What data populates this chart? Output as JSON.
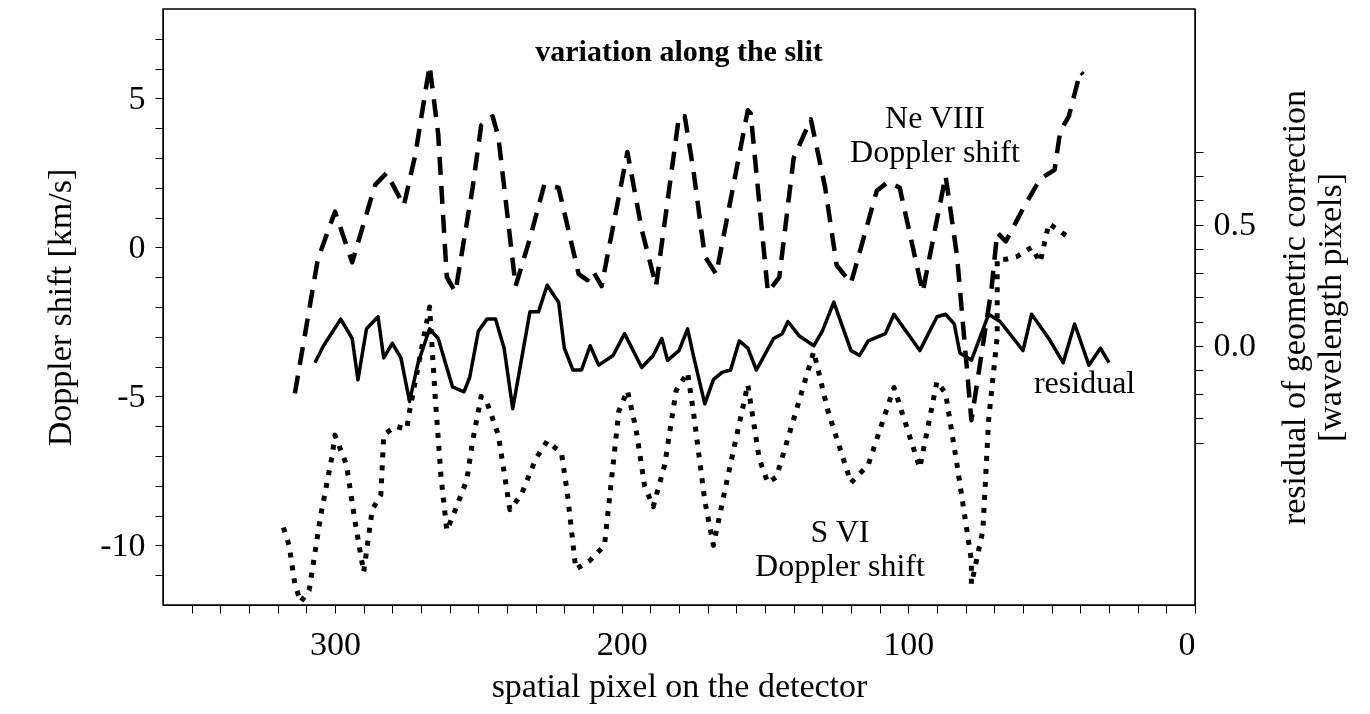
{
  "chart_data": {
    "type": "line",
    "title": "variation along the slit",
    "xlabel": "spatial pixel on the detector",
    "ylabel": "Doppler shift [km/s]",
    "y2label": "residual of geometric correction\n[wavelength pixels]",
    "xlim": [
      360,
      0
    ],
    "ylim": [
      -12,
      8
    ],
    "y2lim": [
      -1.07,
      1.39
    ],
    "xticks": [
      {
        "value": 350,
        "label": null
      },
      {
        "value": 340,
        "label": null
      },
      {
        "value": 330,
        "label": null
      },
      {
        "value": 320,
        "label": null
      },
      {
        "value": 310,
        "label": null
      },
      300,
      {
        "value": 290,
        "label": null
      },
      {
        "value": 280,
        "label": null
      },
      {
        "value": 270,
        "label": null
      },
      {
        "value": 260,
        "label": null
      },
      {
        "value": 250,
        "label": null
      },
      {
        "value": 240,
        "label": null
      },
      {
        "value": 230,
        "label": null
      },
      {
        "value": 220,
        "label": null
      },
      {
        "value": 210,
        "label": null
      },
      200,
      {
        "value": 190,
        "label": null
      },
      {
        "value": 180,
        "label": null
      },
      {
        "value": 170,
        "label": null
      },
      {
        "value": 160,
        "label": null
      },
      {
        "value": 150,
        "label": null
      },
      {
        "value": 140,
        "label": null
      },
      {
        "value": 130,
        "label": null
      },
      {
        "value": 120,
        "label": null
      },
      {
        "value": 110,
        "label": null
      },
      100,
      {
        "value": 90,
        "label": null
      },
      {
        "value": 80,
        "label": null
      },
      {
        "value": 70,
        "label": null
      },
      {
        "value": 60,
        "label": null
      },
      {
        "value": 50,
        "label": null
      },
      {
        "value": 40,
        "label": null
      },
      {
        "value": 30,
        "label": null
      },
      {
        "value": 20,
        "label": null
      },
      {
        "value": 10,
        "label": null
      },
      0
    ],
    "yticks": [
      {
        "value": -11,
        "label": null
      },
      -10,
      {
        "value": -9,
        "label": null
      },
      {
        "value": -8,
        "label": null
      },
      {
        "value": -7,
        "label": null
      },
      {
        "value": -6,
        "label": null
      },
      -5,
      {
        "value": -4,
        "label": null
      },
      {
        "value": -3,
        "label": null
      },
      {
        "value": -2,
        "label": null
      },
      {
        "value": -1,
        "label": null
      },
      0,
      {
        "value": 1,
        "label": null
      },
      {
        "value": 2,
        "label": null
      },
      {
        "value": 3,
        "label": null
      },
      {
        "value": 4,
        "label": null
      },
      5,
      {
        "value": 6,
        "label": null
      },
      {
        "value": 7,
        "label": null
      }
    ],
    "y2ticks": [
      {
        "value": -0.4,
        "label": null
      },
      {
        "value": -0.3,
        "label": null
      },
      {
        "value": -0.2,
        "label": null
      },
      {
        "value": -0.1,
        "label": null
      },
      {
        "value": 0,
        "label": "0.0"
      },
      {
        "value": 0.1,
        "label": null
      },
      {
        "value": 0.2,
        "label": null
      },
      {
        "value": 0.3,
        "label": null
      },
      {
        "value": 0.4,
        "label": null
      },
      {
        "value": 0.5,
        "label": "0.5"
      },
      {
        "value": 0.6,
        "label": null
      },
      {
        "value": 0.7,
        "label": null
      },
      {
        "value": 0.8,
        "label": null
      }
    ],
    "grid": false,
    "marker": "none",
    "series": [
      {
        "name": "Ne VIII\nDoppler shift",
        "color": "#000000",
        "line_style": "dashed",
        "x": [
          314,
          306,
          300,
          294,
          286,
          282,
          276,
          272,
          267,
          264,
          261,
          258,
          252,
          249,
          245,
          243,
          237,
          232,
          227,
          222,
          215,
          212,
          210,
          207,
          198,
          193,
          188,
          180,
          178,
          175,
          171,
          167,
          156,
          155,
          149,
          145,
          140,
          134,
          129,
          125,
          120,
          111,
          107,
          103,
          95,
          87,
          83,
          78,
          71,
          69,
          66,
          60,
          54,
          49,
          47,
          44,
          40,
          39
        ],
        "values": [
          -4.9,
          -0.4,
          1.2,
          -0.5,
          2.1,
          2.5,
          1.4,
          3.1,
          6.1,
          3.8,
          -1.0,
          -1.5,
          2.0,
          4.1,
          4.4,
          3.7,
          -1.3,
          0.3,
          2.1,
          2.0,
          -0.9,
          -1.1,
          -0.8,
          -1.3,
          3.2,
          0.6,
          -1.3,
          4.4,
          4.4,
          2.6,
          -0.3,
          -0.9,
          4.6,
          4.5,
          -1.5,
          -1.0,
          3.0,
          4.3,
          2.0,
          -0.6,
          -1.2,
          1.9,
          2.2,
          2.0,
          -1.5,
          2.4,
          -0.3,
          -5.8,
          -1.4,
          0.5,
          0.2,
          1.3,
          2.3,
          2.6,
          3.9,
          4.4,
          5.9,
          5.8
        ]
      },
      {
        "name": "residual",
        "color": "#000000",
        "line_style": "solid",
        "axis": "y2",
        "x": [
          307,
          304,
          298,
          294,
          292,
          289,
          285,
          283,
          280,
          277,
          274,
          271,
          267,
          264,
          259,
          255,
          253,
          250,
          247,
          244,
          241,
          238,
          232,
          229,
          226,
          222,
          220,
          217,
          214,
          211,
          208,
          203,
          199,
          193,
          189,
          186,
          184,
          180,
          177,
          175,
          171,
          168,
          165,
          162,
          159,
          156,
          153,
          147,
          144,
          142,
          138,
          133,
          130,
          126,
          120,
          117,
          114,
          108,
          105,
          96,
          90,
          87,
          84,
          82,
          78,
          72,
          68,
          60,
          57,
          51,
          46,
          42,
          37,
          33,
          30
        ],
        "values": [
          -0.07,
          0.0,
          0.11,
          0.03,
          -0.14,
          0.07,
          0.12,
          -0.05,
          0.01,
          -0.05,
          -0.23,
          -0.07,
          0.07,
          0.03,
          -0.17,
          -0.19,
          -0.13,
          0.06,
          0.11,
          0.11,
          -0.01,
          -0.26,
          0.14,
          0.14,
          0.25,
          0.18,
          -0.01,
          -0.1,
          -0.1,
          0.0,
          -0.08,
          -0.04,
          0.05,
          -0.09,
          -0.04,
          0.03,
          -0.06,
          -0.02,
          0.07,
          -0.04,
          -0.24,
          -0.14,
          -0.11,
          -0.1,
          0.02,
          -0.01,
          -0.1,
          0.03,
          0.05,
          0.1,
          0.04,
          0.0,
          0.06,
          0.18,
          -0.02,
          -0.04,
          0.02,
          0.05,
          0.13,
          -0.02,
          0.12,
          0.13,
          0.09,
          -0.03,
          -0.06,
          0.13,
          0.1,
          -0.02,
          0.13,
          0.03,
          -0.07,
          0.09,
          -0.08,
          -0.01,
          -0.07
        ]
      },
      {
        "name": "S VI\nDoppler shift",
        "color": "#000000",
        "line_style": "dotted",
        "x": [
          318,
          316,
          314,
          312,
          309,
          305,
          301,
          300,
          296,
          293,
          290,
          287,
          284,
          283,
          279,
          275,
          274,
          267,
          265,
          263,
          261,
          258,
          254,
          252,
          249,
          247,
          243,
          239,
          235,
          230,
          226,
          221,
          219,
          216,
          211,
          206,
          201,
          198,
          195,
          192,
          189,
          185,
          181,
          177,
          175,
          171,
          168,
          163,
          156,
          152,
          149,
          146,
          133,
          128,
          120,
          114,
          105,
          98,
          96,
          90,
          87,
          83,
          78,
          78,
          74,
          72,
          69,
          69,
          66,
          62,
          57,
          54,
          51,
          45
        ],
        "values": [
          -9.4,
          -10.0,
          -11.3,
          -11.9,
          -11.5,
          -9.0,
          -7.0,
          -6.3,
          -7.3,
          -9.2,
          -10.9,
          -8.8,
          -8.3,
          -6.3,
          -6.0,
          -6.1,
          -5.5,
          -2.0,
          -5.1,
          -7.7,
          -9.5,
          -8.8,
          -7.8,
          -6.5,
          -5.0,
          -5.2,
          -6.3,
          -8.8,
          -8.3,
          -7.1,
          -6.5,
          -6.9,
          -8.2,
          -10.8,
          -10.5,
          -10.0,
          -5.5,
          -4.8,
          -6.1,
          -8.0,
          -8.7,
          -7.3,
          -4.8,
          -4.2,
          -5.5,
          -8.5,
          -10.0,
          -7.7,
          -4.6,
          -7.1,
          -7.9,
          -7.7,
          -3.5,
          -5.5,
          -7.9,
          -7.3,
          -4.7,
          -6.8,
          -7.4,
          -4.5,
          -4.9,
          -7.3,
          -10.5,
          -11.3,
          -9.5,
          -5.8,
          -3.0,
          -0.4,
          -0.4,
          -0.3,
          0.0,
          -0.5,
          0.8,
          0.4
        ]
      }
    ]
  }
}
